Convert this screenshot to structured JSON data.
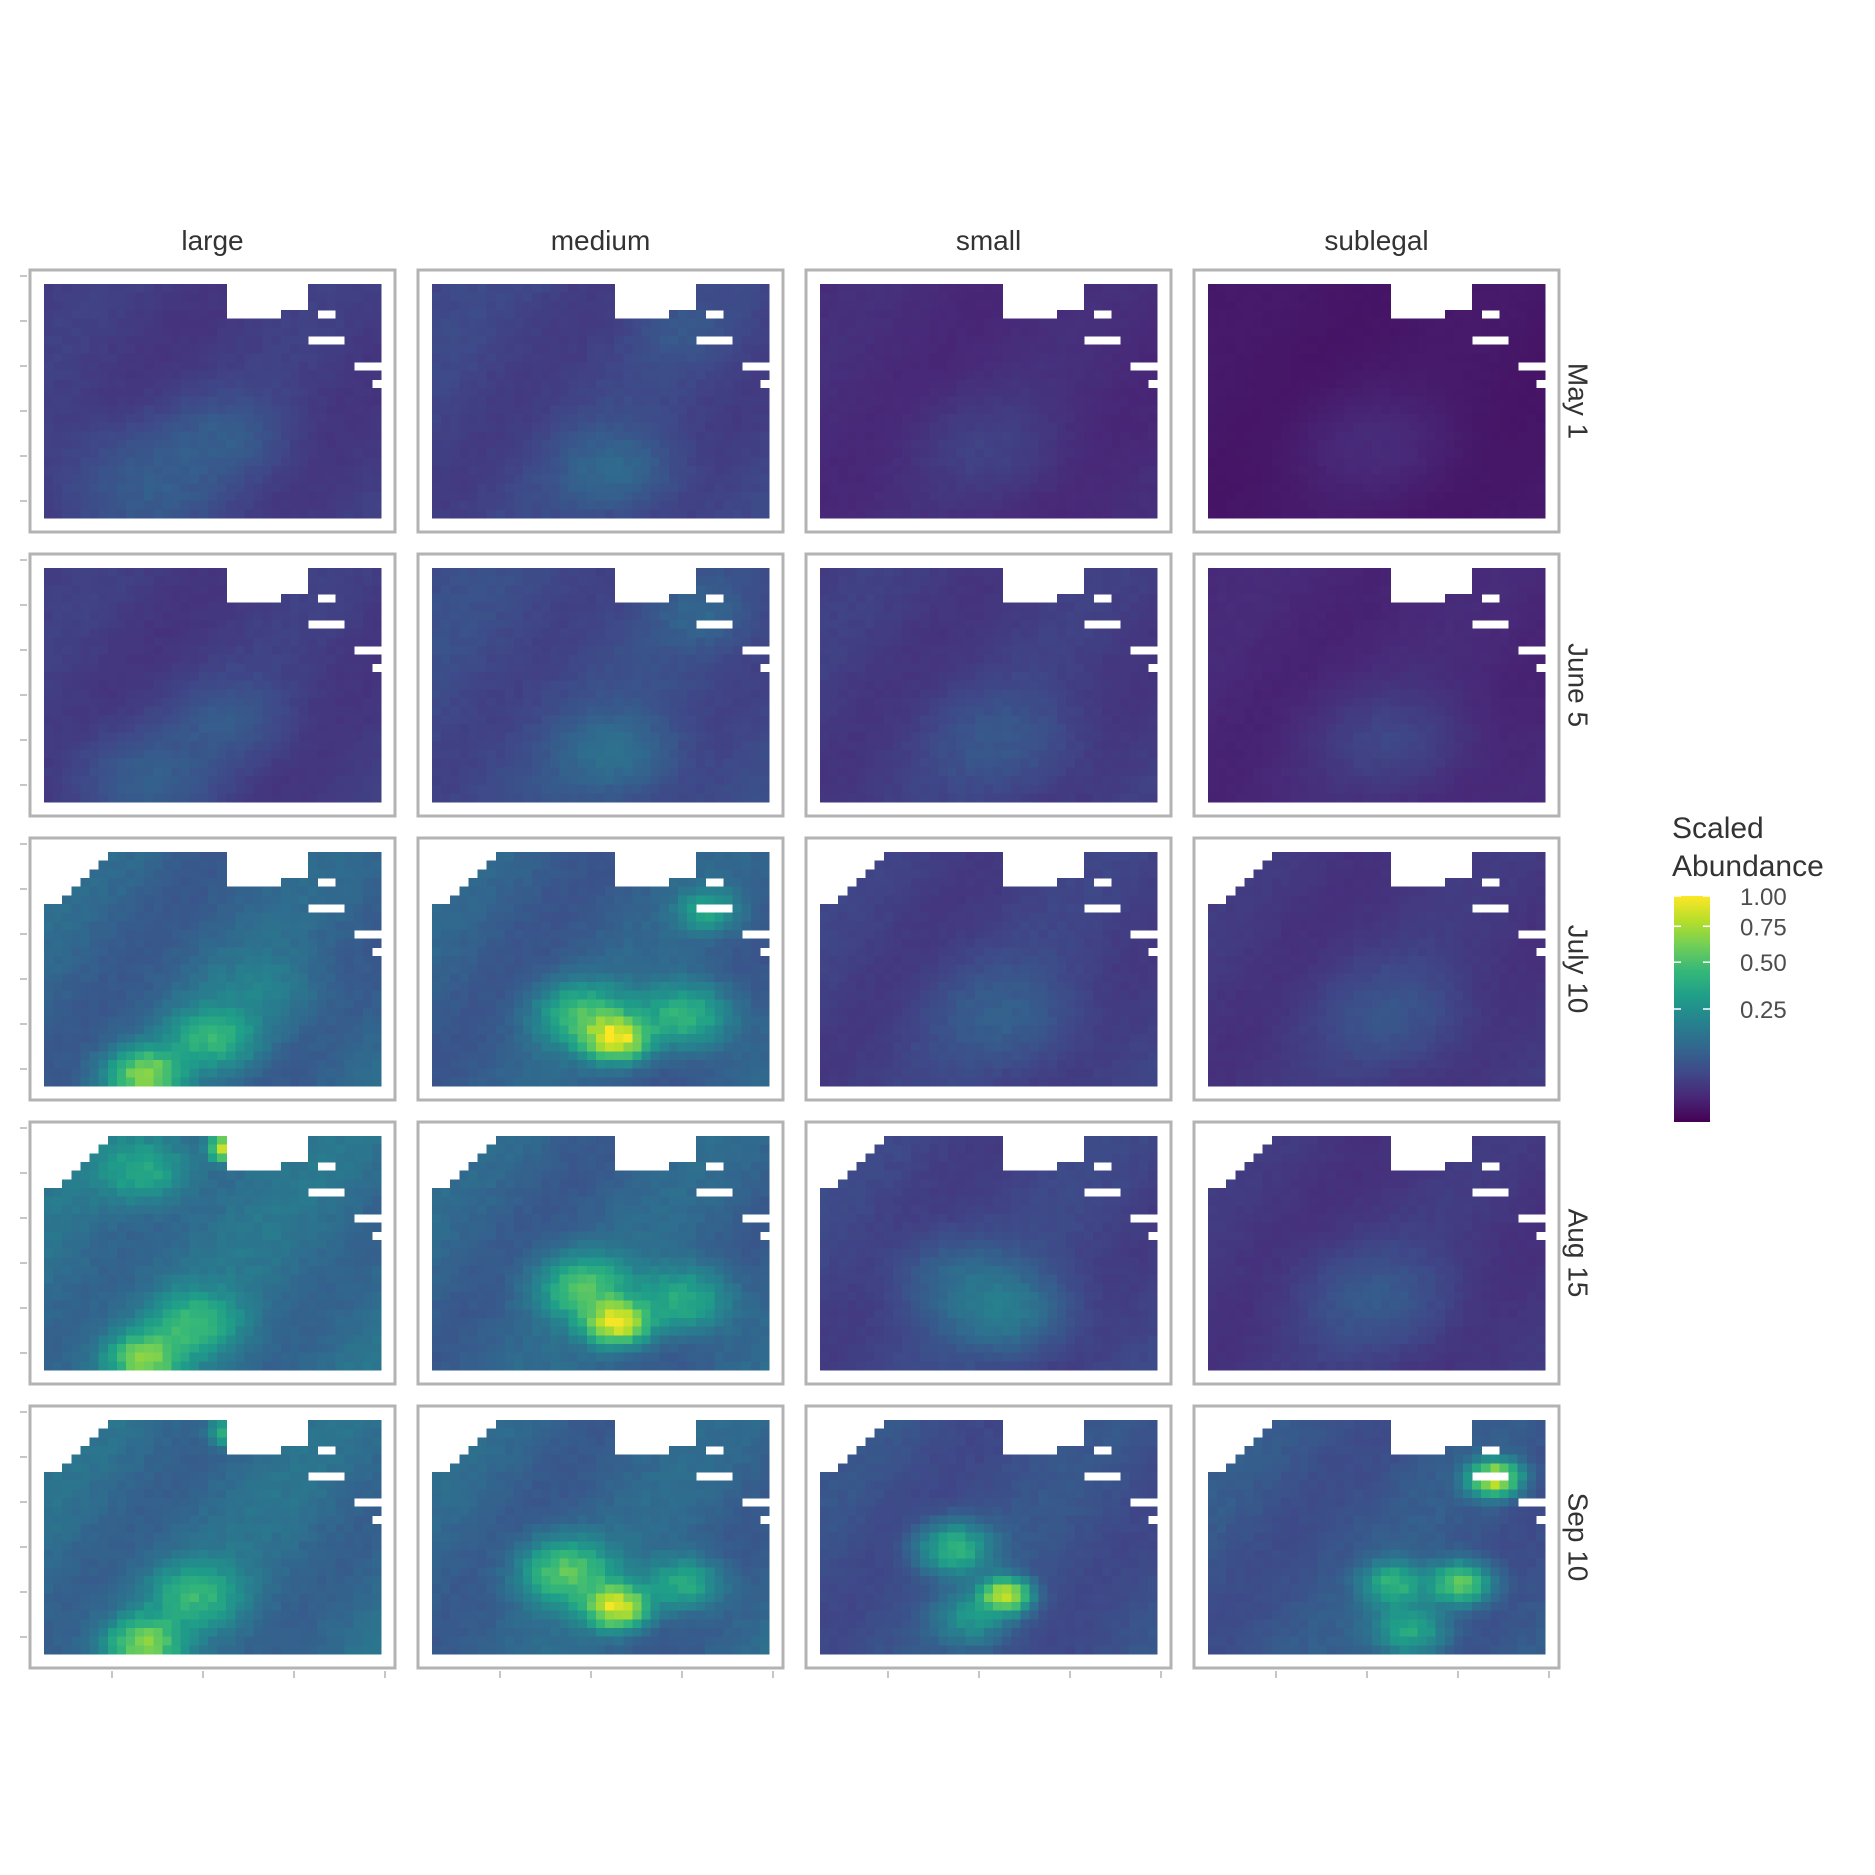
{
  "chart_data": {
    "type": "heatmap",
    "title": "",
    "xlabel": "",
    "ylabel": "",
    "columns": [
      "large",
      "medium",
      "small",
      "sublegal"
    ],
    "rows": [
      "May 1",
      "June 5",
      "July 10",
      "Aug 15",
      "Sep 10"
    ],
    "legend": {
      "title_lines": [
        "Scaled",
        "Abundance"
      ],
      "ticks": [
        {
          "value": 1.0,
          "label": "1.00"
        },
        {
          "value": 0.75,
          "label": "0.75"
        },
        {
          "value": 0.5,
          "label": "0.50"
        },
        {
          "value": 0.25,
          "label": "0.25"
        }
      ],
      "scale": "square-root",
      "placement": "right",
      "palette": "viridis",
      "colors": [
        "#440154",
        "#482878",
        "#3e4a89",
        "#31688e",
        "#26828e",
        "#1f9e89",
        "#35b779",
        "#6ece58",
        "#b5de2b",
        "#fde725"
      ]
    },
    "hotspots_description_note": null,
    "panels": [
      {
        "row": "May 1",
        "column": "large",
        "base": 0.03,
        "hotspots": [
          [
            0.3,
            0.85,
            0.05,
            0.3
          ],
          [
            0.55,
            0.65,
            0.04,
            0.2
          ]
        ]
      },
      {
        "row": "May 1",
        "column": "medium",
        "base": 0.04,
        "hotspots": [
          [
            0.55,
            0.8,
            0.07,
            0.2
          ],
          [
            0.75,
            0.2,
            0.03,
            0.15
          ]
        ]
      },
      {
        "row": "May 1",
        "column": "small",
        "base": 0.015,
        "hotspots": [
          [
            0.5,
            0.7,
            0.02,
            0.25
          ]
        ]
      },
      {
        "row": "May 1",
        "column": "sublegal",
        "base": 0.004,
        "hotspots": [
          [
            0.5,
            0.7,
            0.01,
            0.25
          ]
        ]
      },
      {
        "row": "June 5",
        "column": "large",
        "base": 0.03,
        "hotspots": [
          [
            0.3,
            0.9,
            0.05,
            0.25
          ],
          [
            0.55,
            0.65,
            0.04,
            0.2
          ]
        ]
      },
      {
        "row": "June 5",
        "column": "medium",
        "base": 0.05,
        "hotspots": [
          [
            0.55,
            0.8,
            0.08,
            0.2
          ],
          [
            0.8,
            0.2,
            0.05,
            0.15
          ]
        ]
      },
      {
        "row": "June 5",
        "column": "small",
        "base": 0.03,
        "hotspots": [
          [
            0.55,
            0.75,
            0.04,
            0.25
          ]
        ]
      },
      {
        "row": "June 5",
        "column": "sublegal",
        "base": 0.012,
        "hotspots": [
          [
            0.55,
            0.75,
            0.03,
            0.25
          ]
        ]
      },
      {
        "row": "July 10",
        "column": "large",
        "base": 0.1,
        "hotspots": [
          [
            0.3,
            0.95,
            0.55,
            0.12
          ],
          [
            0.5,
            0.8,
            0.3,
            0.15
          ],
          [
            0.65,
            0.6,
            0.08,
            0.2
          ]
        ]
      },
      {
        "row": "July 10",
        "column": "medium",
        "base": 0.09,
        "hotspots": [
          [
            0.55,
            0.8,
            0.8,
            0.1
          ],
          [
            0.45,
            0.7,
            0.4,
            0.15
          ],
          [
            0.75,
            0.7,
            0.35,
            0.15
          ],
          [
            0.82,
            0.25,
            0.25,
            0.1
          ]
        ]
      },
      {
        "row": "July 10",
        "column": "small",
        "base": 0.035,
        "hotspots": [
          [
            0.55,
            0.7,
            0.05,
            0.25
          ]
        ]
      },
      {
        "row": "July 10",
        "column": "sublegal",
        "base": 0.025,
        "hotspots": [
          [
            0.55,
            0.7,
            0.04,
            0.25
          ]
        ]
      },
      {
        "row": "Aug 15",
        "column": "large",
        "base": 0.13,
        "hotspots": [
          [
            0.3,
            0.95,
            0.5,
            0.12
          ],
          [
            0.45,
            0.8,
            0.3,
            0.15
          ],
          [
            0.55,
            0.05,
            1.0,
            0.06
          ],
          [
            0.3,
            0.15,
            0.25,
            0.15
          ]
        ]
      },
      {
        "row": "Aug 15",
        "column": "medium",
        "base": 0.1,
        "hotspots": [
          [
            0.55,
            0.8,
            0.8,
            0.1
          ],
          [
            0.45,
            0.65,
            0.4,
            0.15
          ],
          [
            0.75,
            0.7,
            0.3,
            0.15
          ]
        ]
      },
      {
        "row": "Aug 15",
        "column": "small",
        "base": 0.04,
        "hotspots": [
          [
            0.55,
            0.75,
            0.12,
            0.2
          ],
          [
            0.4,
            0.6,
            0.06,
            0.2
          ]
        ]
      },
      {
        "row": "Aug 15",
        "column": "sublegal",
        "base": 0.025,
        "hotspots": [
          [
            0.5,
            0.7,
            0.05,
            0.25
          ]
        ]
      },
      {
        "row": "Sep 10",
        "column": "large",
        "base": 0.12,
        "hotspots": [
          [
            0.3,
            0.95,
            0.5,
            0.12
          ],
          [
            0.45,
            0.75,
            0.3,
            0.15
          ],
          [
            0.55,
            0.05,
            0.4,
            0.06
          ]
        ]
      },
      {
        "row": "Sep 10",
        "column": "medium",
        "base": 0.1,
        "hotspots": [
          [
            0.55,
            0.8,
            0.8,
            0.1
          ],
          [
            0.4,
            0.65,
            0.45,
            0.15
          ],
          [
            0.75,
            0.7,
            0.3,
            0.12
          ]
        ]
      },
      {
        "row": "Sep 10",
        "column": "small",
        "base": 0.06,
        "hotspots": [
          [
            0.55,
            0.75,
            0.75,
            0.08
          ],
          [
            0.4,
            0.55,
            0.35,
            0.12
          ],
          [
            0.45,
            0.85,
            0.2,
            0.12
          ]
        ]
      },
      {
        "row": "Sep 10",
        "column": "sublegal",
        "base": 0.07,
        "hotspots": [
          [
            0.85,
            0.25,
            0.85,
            0.08
          ],
          [
            0.75,
            0.7,
            0.5,
            0.1
          ],
          [
            0.55,
            0.7,
            0.35,
            0.1
          ],
          [
            0.6,
            0.9,
            0.3,
            0.12
          ]
        ]
      }
    ]
  }
}
